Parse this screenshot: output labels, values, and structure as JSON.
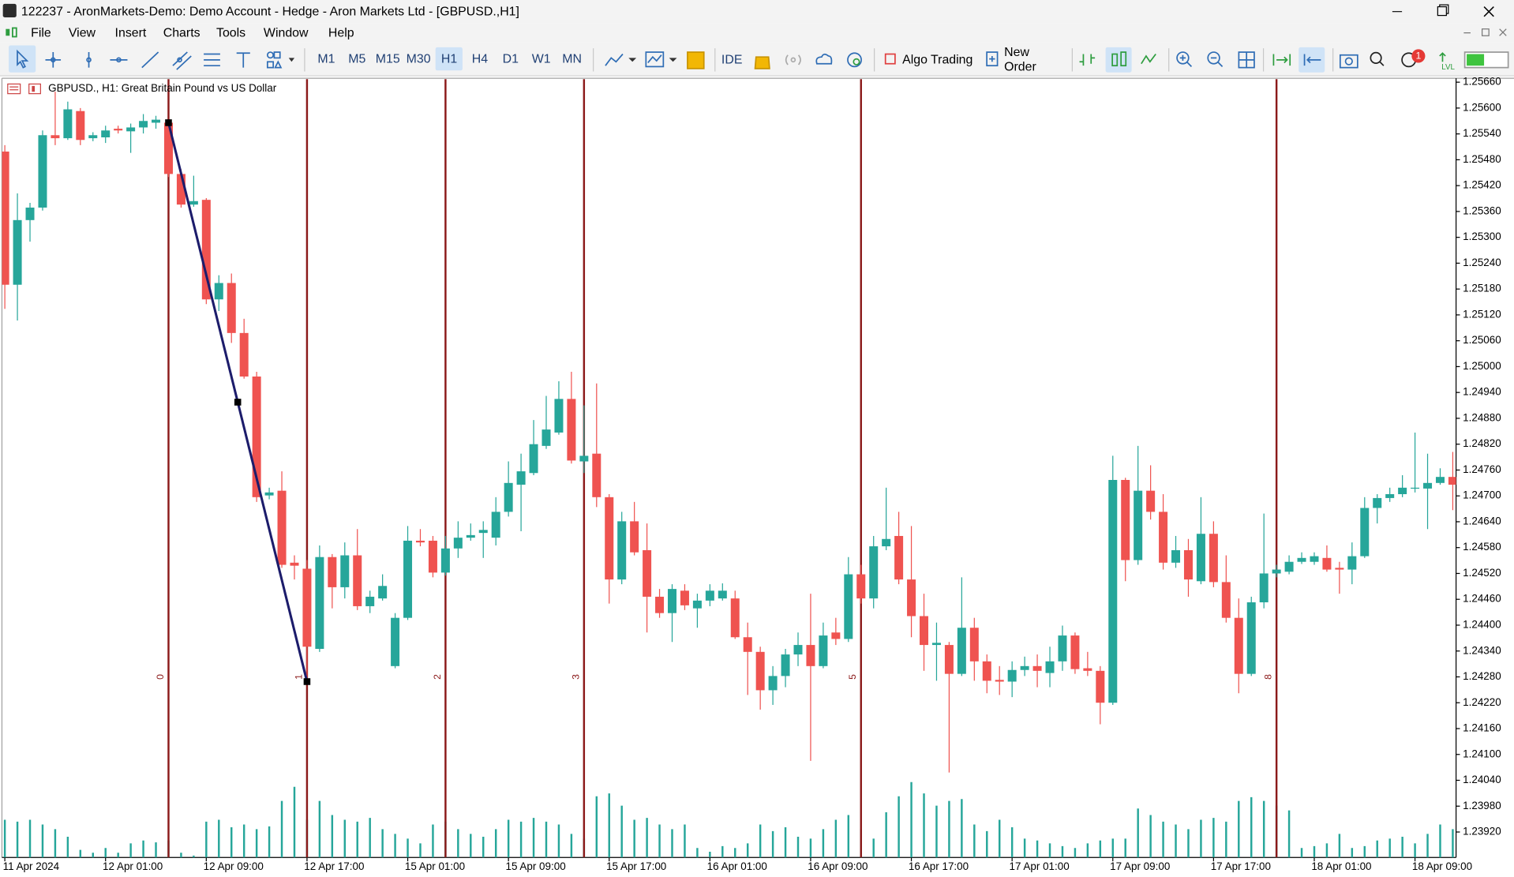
{
  "window": {
    "title": "122237 - AronMarkets-Demo: Demo Account - Hedge - Aron Markets Ltd - [GBPUSD.,H1]"
  },
  "menu": [
    "File",
    "View",
    "Insert",
    "Charts",
    "Tools",
    "Window",
    "Help"
  ],
  "toolbar": {
    "timeframes": [
      "M1",
      "M5",
      "M15",
      "M30",
      "H1",
      "H4",
      "D1",
      "W1",
      "MN"
    ],
    "selected_timeframe": "H1",
    "ide": "IDE",
    "algo_trading": "Algo Trading",
    "new_order": "New Order",
    "notifications": 1,
    "level": "LVL"
  },
  "chart_data": {
    "type": "candlestick",
    "title": "GBPUSD., H1:  Great Britain Pound vs US Dollar",
    "categories": [
      "11 Apr 2024",
      null,
      null,
      null,
      null,
      null,
      null,
      null,
      "12 Apr 01:00",
      null,
      null,
      null,
      null,
      null,
      null,
      null,
      "12 Apr 09:00",
      null,
      null,
      null,
      null,
      null,
      null,
      null,
      "12 Apr 17:00",
      null,
      null,
      null,
      null,
      null,
      null,
      null,
      "15 Apr 01:00",
      null,
      null,
      null,
      null,
      null,
      null,
      null,
      "15 Apr 09:00",
      null,
      null,
      null,
      null,
      null,
      null,
      null,
      "15 Apr 17:00",
      null,
      null,
      null,
      null,
      null,
      null,
      null,
      "16 Apr 01:00",
      null,
      null,
      null,
      null,
      null,
      null,
      null,
      "16 Apr 09:00",
      null,
      null,
      null,
      null,
      null,
      null,
      null,
      "16 Apr 17:00",
      null,
      null,
      null,
      null,
      null,
      null,
      null,
      "17 Apr 01:00",
      null,
      null,
      null,
      null,
      null,
      null,
      null,
      "17 Apr 09:00",
      null,
      null,
      null,
      null,
      null,
      null,
      null,
      "17 Apr 17:00",
      null,
      null,
      null,
      null,
      null,
      null,
      null,
      "18 Apr 01:00",
      null,
      null,
      null,
      null,
      null,
      null,
      null,
      "18 Apr 09:00",
      null,
      null,
      null
    ],
    "open": [
      1.25499,
      1.2519,
      1.2534,
      1.25369,
      1.25537,
      1.2553,
      1.25593,
      1.2553,
      1.25532,
      1.25552,
      1.25546,
      1.25555,
      1.25566,
      1.25566,
      1.25447,
      1.25376,
      1.25387,
      1.25156,
      1.25194,
      1.25078,
      1.24977,
      1.24701,
      1.24712,
      1.24545,
      1.24531,
      1.24345,
      1.24558,
      1.24488,
      1.24562,
      1.24444,
      1.24462,
      1.24305,
      1.24417,
      1.24596,
      1.24596,
      1.24522,
      1.24578,
      1.24603,
      1.24614,
      1.24603,
      1.24663,
      1.24726,
      1.24753,
      1.24816,
      1.24847,
      1.24925,
      1.2478,
      1.24798,
      1.24697,
      1.24506,
      1.24641,
      1.24574,
      1.24466,
      1.24428,
      1.2448,
      1.24439,
      1.24457,
      1.24462,
      1.24462,
      1.24372,
      1.24338,
      1.24249,
      1.24282,
      1.24332,
      1.24354,
      1.24305,
      1.24383,
      1.24368,
      1.24518,
      1.24462,
      1.24583,
      1.24607,
      1.24506,
      1.24421,
      1.24354,
      1.24354,
      1.24287,
      1.24394,
      1.24316,
      1.24273,
      1.24269,
      1.24296,
      1.24305,
      1.24289,
      1.24316,
      1.24376,
      1.243,
      1.24294,
      1.2422,
      1.24737,
      1.24551,
      1.24712,
      1.24663,
      1.24545,
      1.24574,
      1.24502,
      1.24612,
      1.245,
      1.24417,
      1.24287,
      1.24453,
      1.2452,
      1.24524,
      1.24547,
      1.24547,
      1.24556,
      1.24533,
      1.24529,
      1.2456,
      1.24672,
      1.24695,
      1.24704,
      1.24717,
      1.24717,
      1.2473,
      1.24744
    ],
    "high": [
      1.25514,
      1.25402,
      1.2538,
      1.25548,
      1.25638,
      1.25615,
      1.256,
      1.25544,
      1.25559,
      1.25559,
      1.25564,
      1.25586,
      1.25582,
      1.25573,
      1.25458,
      1.25443,
      1.25391,
      1.25212,
      1.25216,
      1.25111,
      1.24988,
      1.24719,
      1.24757,
      1.24562,
      1.24551,
      1.24585,
      1.24565,
      1.24592,
      1.24623,
      1.2448,
      1.24518,
      1.24428,
      1.2463,
      1.24623,
      1.24607,
      1.24607,
      1.24641,
      1.24636,
      1.24641,
      1.24697,
      1.2478,
      1.24798,
      1.24876,
      1.24932,
      1.24966,
      1.24988,
      1.2491,
      1.24961,
      1.24704,
      1.24663,
      1.24686,
      1.24636,
      1.24484,
      1.24495,
      1.24495,
      1.24473,
      1.24495,
      1.24497,
      1.2448,
      1.24406,
      1.2435,
      1.24305,
      1.24345,
      1.24383,
      1.24473,
      1.24406,
      1.24417,
      1.24558,
      1.2454,
      1.24607,
      1.24719,
      1.24663,
      1.2463,
      1.24473,
      1.24406,
      1.24361,
      1.24511,
      1.24417,
      1.24332,
      1.24305,
      1.24316,
      1.24327,
      1.24332,
      1.2435,
      1.24399,
      1.24383,
      1.24338,
      1.24305,
      1.24793,
      1.24742,
      1.24816,
      1.24771,
      1.24704,
      1.24607,
      1.246,
      1.24697,
      1.24641,
      1.24562,
      1.24462,
      1.24466,
      1.24659,
      1.2454,
      1.24562,
      1.24569,
      1.24569,
      1.24585,
      1.24547,
      1.24592,
      1.24697,
      1.24704,
      1.24719,
      1.24748,
      1.24847,
      1.24798,
      1.24764,
      1.24802
    ],
    "low": [
      1.25134,
      1.25107,
      1.2529,
      1.25362,
      1.25514,
      1.25526,
      1.25514,
      1.25523,
      1.25519,
      1.25541,
      1.25496,
      1.25541,
      1.25552,
      1.2544,
      1.25369,
      1.25371,
      1.25145,
      1.25129,
      1.25055,
      1.24972,
      1.24686,
      1.24692,
      1.24533,
      1.24506,
      1.24271,
      1.24338,
      1.24439,
      1.24462,
      1.24435,
      1.24428,
      1.24457,
      1.243,
      1.24412,
      1.24583,
      1.24511,
      1.24515,
      1.24556,
      1.24596,
      1.24556,
      1.24585,
      1.24652,
      1.24618,
      1.24748,
      1.24809,
      1.24842,
      1.24775,
      1.24753,
      1.24674,
      1.2445,
      1.24495,
      1.24562,
      1.24383,
      1.24417,
      1.24361,
      1.24435,
      1.24394,
      1.24444,
      1.24457,
      1.24368,
      1.24238,
      1.24204,
      1.24215,
      1.24256,
      1.24305,
      1.24085,
      1.243,
      1.24354,
      1.24361,
      1.2445,
      1.24439,
      1.24574,
      1.24495,
      1.24372,
      1.24294,
      1.24271,
      1.24058,
      1.24282,
      1.24271,
      1.24242,
      1.24238,
      1.24233,
      1.24282,
      1.24256,
      1.24256,
      1.24294,
      1.24287,
      1.24282,
      1.2417,
      1.24215,
      1.24502,
      1.2454,
      1.24645,
      1.24529,
      1.24533,
      1.24466,
      1.24495,
      1.24488,
      1.24406,
      1.24242,
      1.24282,
      1.24439,
      1.24511,
      1.24518,
      1.24542,
      1.2454,
      1.24524,
      1.24473,
      1.24495,
      1.24556,
      1.24636,
      1.24686,
      1.24697,
      1.24708,
      1.24623,
      1.24726,
      1.24667
    ],
    "close": [
      1.2519,
      1.2534,
      1.25369,
      1.25537,
      1.2553,
      1.25597,
      1.25526,
      1.25537,
      1.25548,
      1.25548,
      1.25555,
      1.2557,
      1.25573,
      1.25447,
      1.25376,
      1.25384,
      1.25156,
      1.25194,
      1.25078,
      1.24977,
      1.24697,
      1.24708,
      1.2454,
      1.24538,
      1.2435,
      1.24558,
      1.24488,
      1.24562,
      1.24444,
      1.24466,
      1.24491,
      1.24417,
      1.24596,
      1.24592,
      1.24522,
      1.24578,
      1.24603,
      1.24609,
      1.24621,
      1.24663,
      1.2473,
      1.24757,
      1.2482,
      1.24854,
      1.24925,
      1.24782,
      1.24793,
      1.24697,
      1.24506,
      1.24641,
      1.24569,
      1.24466,
      1.24428,
      1.24484,
      1.24446,
      1.24457,
      1.2448,
      1.2448,
      1.24372,
      1.24338,
      1.24249,
      1.24282,
      1.24332,
      1.24354,
      1.24305,
      1.24376,
      1.24368,
      1.24518,
      1.24462,
      1.24583,
      1.246,
      1.24506,
      1.24421,
      1.24354,
      1.24359,
      1.24287,
      1.24394,
      1.24316,
      1.24271,
      1.24269,
      1.24296,
      1.24305,
      1.24294,
      1.24316,
      1.24376,
      1.24298,
      1.24294,
      1.2422,
      1.24737,
      1.24551,
      1.24712,
      1.24663,
      1.24545,
      1.24574,
      1.24506,
      1.24612,
      1.245,
      1.24417,
      1.24287,
      1.24453,
      1.2452,
      1.24529,
      1.24547,
      1.24556,
      1.2456,
      1.24529,
      1.24529,
      1.2456,
      1.24672,
      1.24695,
      1.24704,
      1.24719,
      1.24719,
      1.2473,
      1.24744,
      1.24726
    ],
    "volumes": [
      800,
      760,
      800,
      700,
      600,
      440,
      160,
      100,
      200,
      100,
      300,
      360,
      320,
      360,
      100,
      40,
      760,
      800,
      640,
      700,
      600,
      660,
      1200,
      1500,
      800,
      1200,
      900,
      800,
      760,
      840,
      600,
      500,
      400,
      300,
      700,
      760,
      600,
      500,
      440,
      600,
      800,
      760,
      840,
      760,
      700,
      500,
      400,
      1300,
      1360,
      1100,
      800,
      840,
      700,
      600,
      700,
      200,
      120,
      240,
      200,
      300,
      700,
      560,
      640,
      440,
      400,
      600,
      800,
      900,
      600,
      400,
      960,
      1300,
      1600,
      1360,
      1100,
      1200,
      1240,
      700,
      560,
      800,
      640,
      400,
      360,
      300,
      240,
      200,
      300,
      360,
      400,
      400,
      1040,
      900,
      760,
      700,
      600,
      800,
      840,
      760,
      1200,
      1280,
      1200,
      1100,
      1000,
      200,
      240,
      300,
      500,
      200,
      240,
      360,
      400,
      440,
      300,
      500,
      700,
      600
    ],
    "up_color": "#26a69a",
    "down_color": "#ef5350",
    "volume_color": "#26a69a",
    "ylim": [
      1.23861,
      1.25667
    ],
    "yticks": [
      {
        "value": 1.2566,
        "label": "1.25660"
      },
      {
        "value": 1.256,
        "label": "1.25600"
      },
      {
        "value": 1.2554,
        "label": "1.25540"
      },
      {
        "value": 1.2548,
        "label": "1.25480"
      },
      {
        "value": 1.2542,
        "label": "1.25420"
      },
      {
        "value": 1.2536,
        "label": "1.25360"
      },
      {
        "value": 1.253,
        "label": "1.25300"
      },
      {
        "value": 1.2524,
        "label": "1.25240"
      },
      {
        "value": 1.2518,
        "label": "1.25180"
      },
      {
        "value": 1.2512,
        "label": "1.25120"
      },
      {
        "value": 1.2506,
        "label": "1.25060"
      },
      {
        "value": 1.25,
        "label": "1.25000"
      },
      {
        "value": 1.2494,
        "label": "1.24940"
      },
      {
        "value": 1.2488,
        "label": "1.24880"
      },
      {
        "value": 1.2482,
        "label": "1.24820"
      },
      {
        "value": 1.2476,
        "label": "1.24760"
      },
      {
        "value": 1.247,
        "label": "1.24700"
      },
      {
        "value": 1.2464,
        "label": "1.24640"
      },
      {
        "value": 1.2458,
        "label": "1.24580"
      },
      {
        "value": 1.2452,
        "label": "1.24520"
      },
      {
        "value": 1.2446,
        "label": "1.24460"
      },
      {
        "value": 1.244,
        "label": "1.24400"
      },
      {
        "value": 1.2434,
        "label": "1.24340"
      },
      {
        "value": 1.2428,
        "label": "1.24280"
      },
      {
        "value": 1.2422,
        "label": "1.24220"
      },
      {
        "value": 1.2416,
        "label": "1.24160"
      },
      {
        "value": 1.241,
        "label": "1.24100"
      },
      {
        "value": 1.2404,
        "label": "1.24040"
      },
      {
        "value": 1.2398,
        "label": "1.23980"
      },
      {
        "value": 1.2392,
        "label": "1.23920"
      }
    ],
    "fib_time_zones": {
      "levels": [
        0,
        1,
        2,
        3,
        5,
        8
      ],
      "start": 13,
      "step": 11,
      "color": "#8b1a1a"
    },
    "trendline": {
      "from": [
        13,
        1.25566
      ],
      "to": [
        24,
        1.24269
      ],
      "color": "#1c1c6b"
    }
  }
}
